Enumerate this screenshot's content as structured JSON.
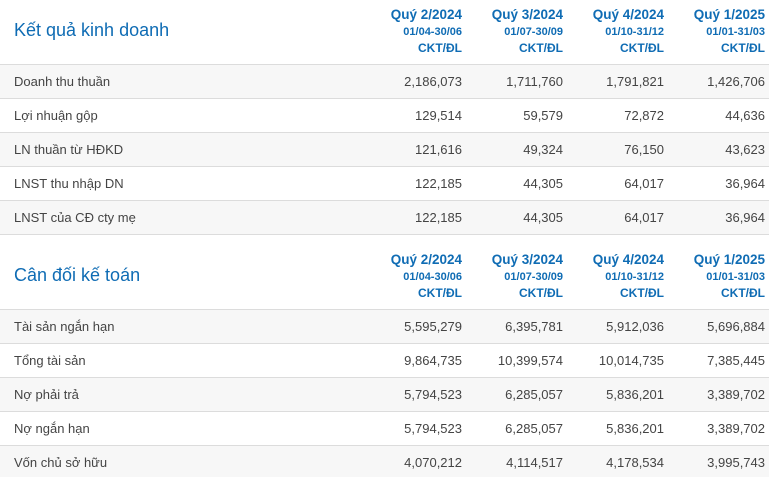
{
  "colors": {
    "accent_blue": "#0f6cb4",
    "row_stripe": "#f7f7f7",
    "border": "#dcdcdc",
    "text": "#444444",
    "background": "#ffffff"
  },
  "columns": [
    {
      "quarter": "Quý 2/2024",
      "period": "01/04-30/06",
      "basis": "CKT/ĐL"
    },
    {
      "quarter": "Quý 3/2024",
      "period": "01/07-30/09",
      "basis": "CKT/ĐL"
    },
    {
      "quarter": "Quý 4/2024",
      "period": "01/10-31/12",
      "basis": "CKT/ĐL"
    },
    {
      "quarter": "Quý 1/2025",
      "period": "01/01-31/03",
      "basis": "CKT/ĐL"
    }
  ],
  "sections": [
    {
      "title": "Kết quả kinh doanh",
      "rows": [
        {
          "label": "Doanh thu thuần",
          "values": [
            "2,186,073",
            "1,711,760",
            "1,791,821",
            "1,426,706"
          ]
        },
        {
          "label": "Lợi nhuận gộp",
          "values": [
            "129,514",
            "59,579",
            "72,872",
            "44,636"
          ]
        },
        {
          "label": "LN thuần từ HĐKD",
          "values": [
            "121,616",
            "49,324",
            "76,150",
            "43,623"
          ]
        },
        {
          "label": "LNST thu nhập DN",
          "values": [
            "122,185",
            "44,305",
            "64,017",
            "36,964"
          ]
        },
        {
          "label": "LNST của CĐ cty mẹ",
          "values": [
            "122,185",
            "44,305",
            "64,017",
            "36,964"
          ]
        }
      ]
    },
    {
      "title": "Cân đối kế toán",
      "rows": [
        {
          "label": "Tài sản ngắn hạn",
          "values": [
            "5,595,279",
            "6,395,781",
            "5,912,036",
            "5,696,884"
          ]
        },
        {
          "label": "Tổng tài sản",
          "values": [
            "9,864,735",
            "10,399,574",
            "10,014,735",
            "7,385,445"
          ]
        },
        {
          "label": "Nợ phải trả",
          "values": [
            "5,794,523",
            "6,285,057",
            "5,836,201",
            "3,389,702"
          ]
        },
        {
          "label": "Nợ ngắn hạn",
          "values": [
            "5,794,523",
            "6,285,057",
            "5,836,201",
            "3,389,702"
          ]
        },
        {
          "label": "Vốn chủ sở hữu",
          "values": [
            "4,070,212",
            "4,114,517",
            "4,178,534",
            "3,995,743"
          ]
        }
      ]
    }
  ]
}
